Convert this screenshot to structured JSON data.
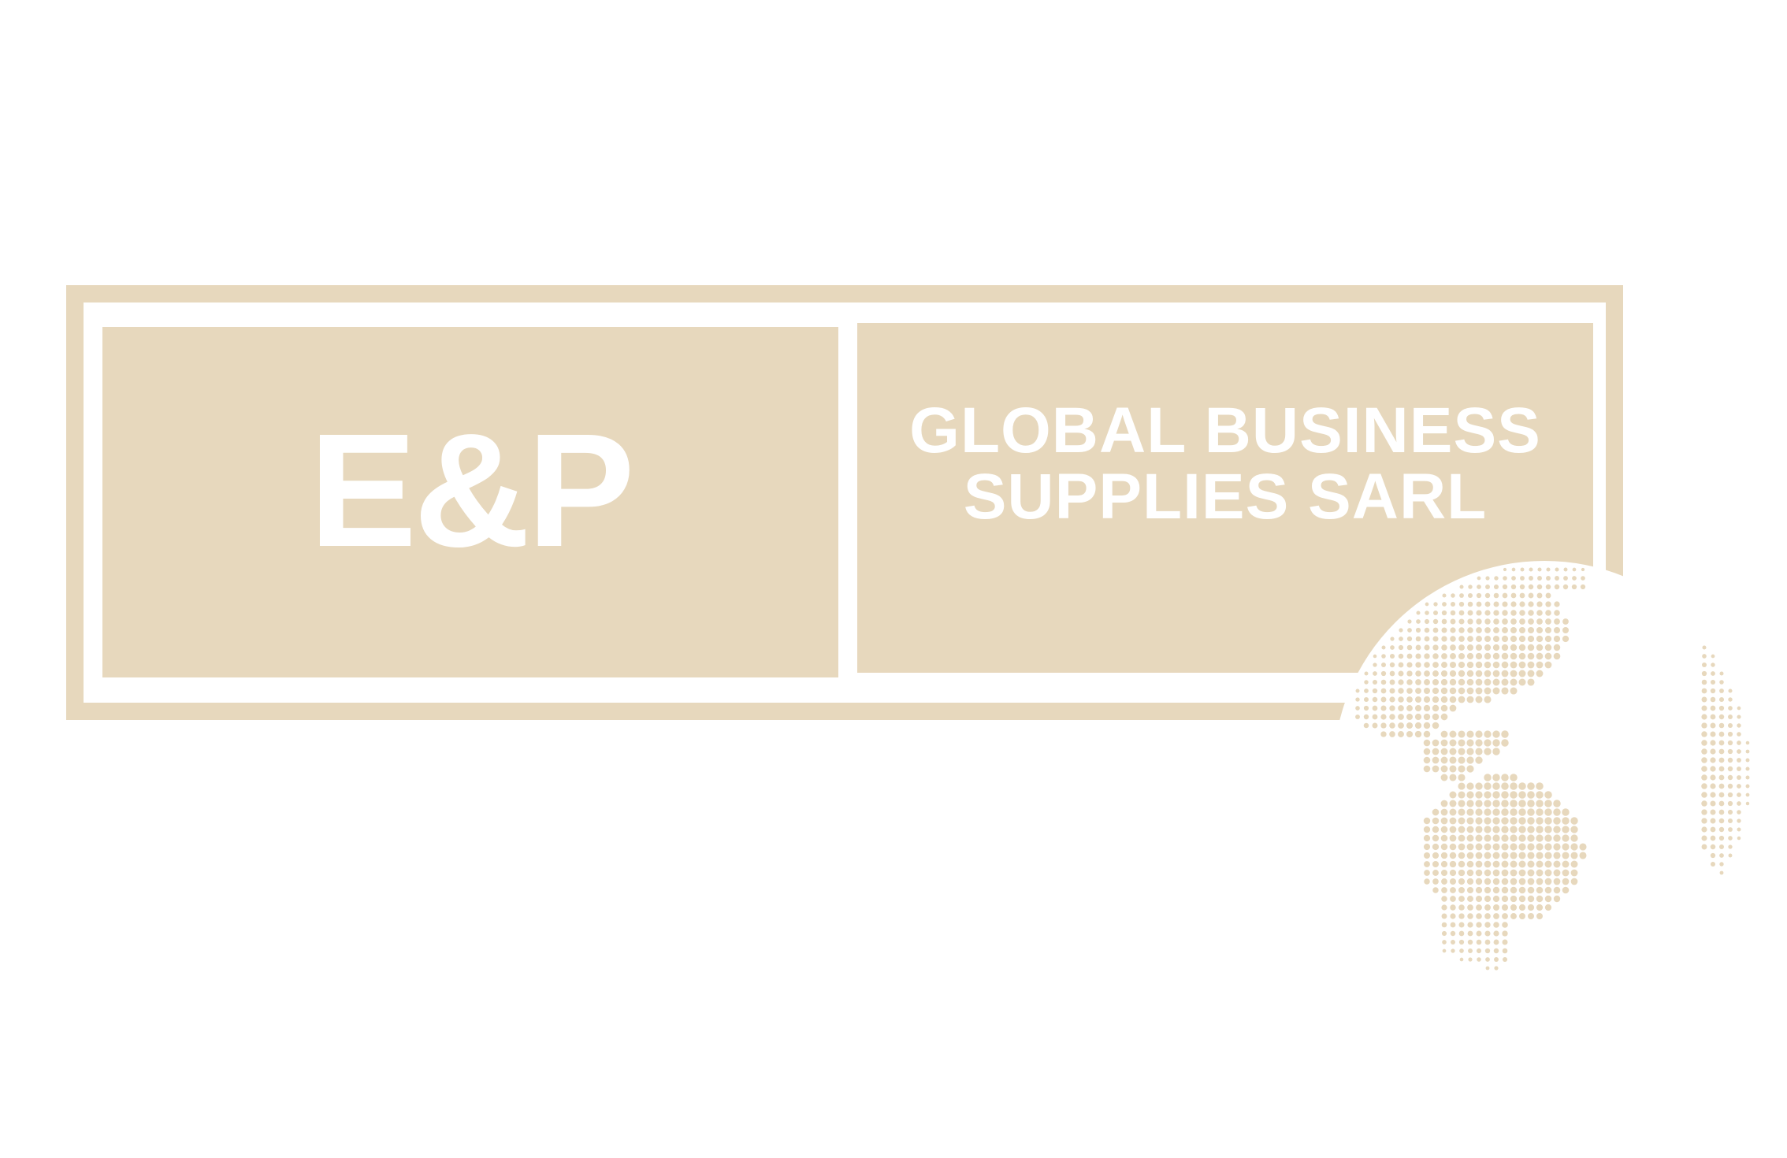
{
  "logo": {
    "mark": "E&P",
    "company_line_1": "GLOBAL BUSINESS",
    "company_line_2": "SUPPLIES SARL",
    "colors": {
      "accent": "#e7d8bd",
      "text": "#ffffff",
      "background": "#ffffff"
    },
    "icon": "dotted-globe-icon"
  }
}
